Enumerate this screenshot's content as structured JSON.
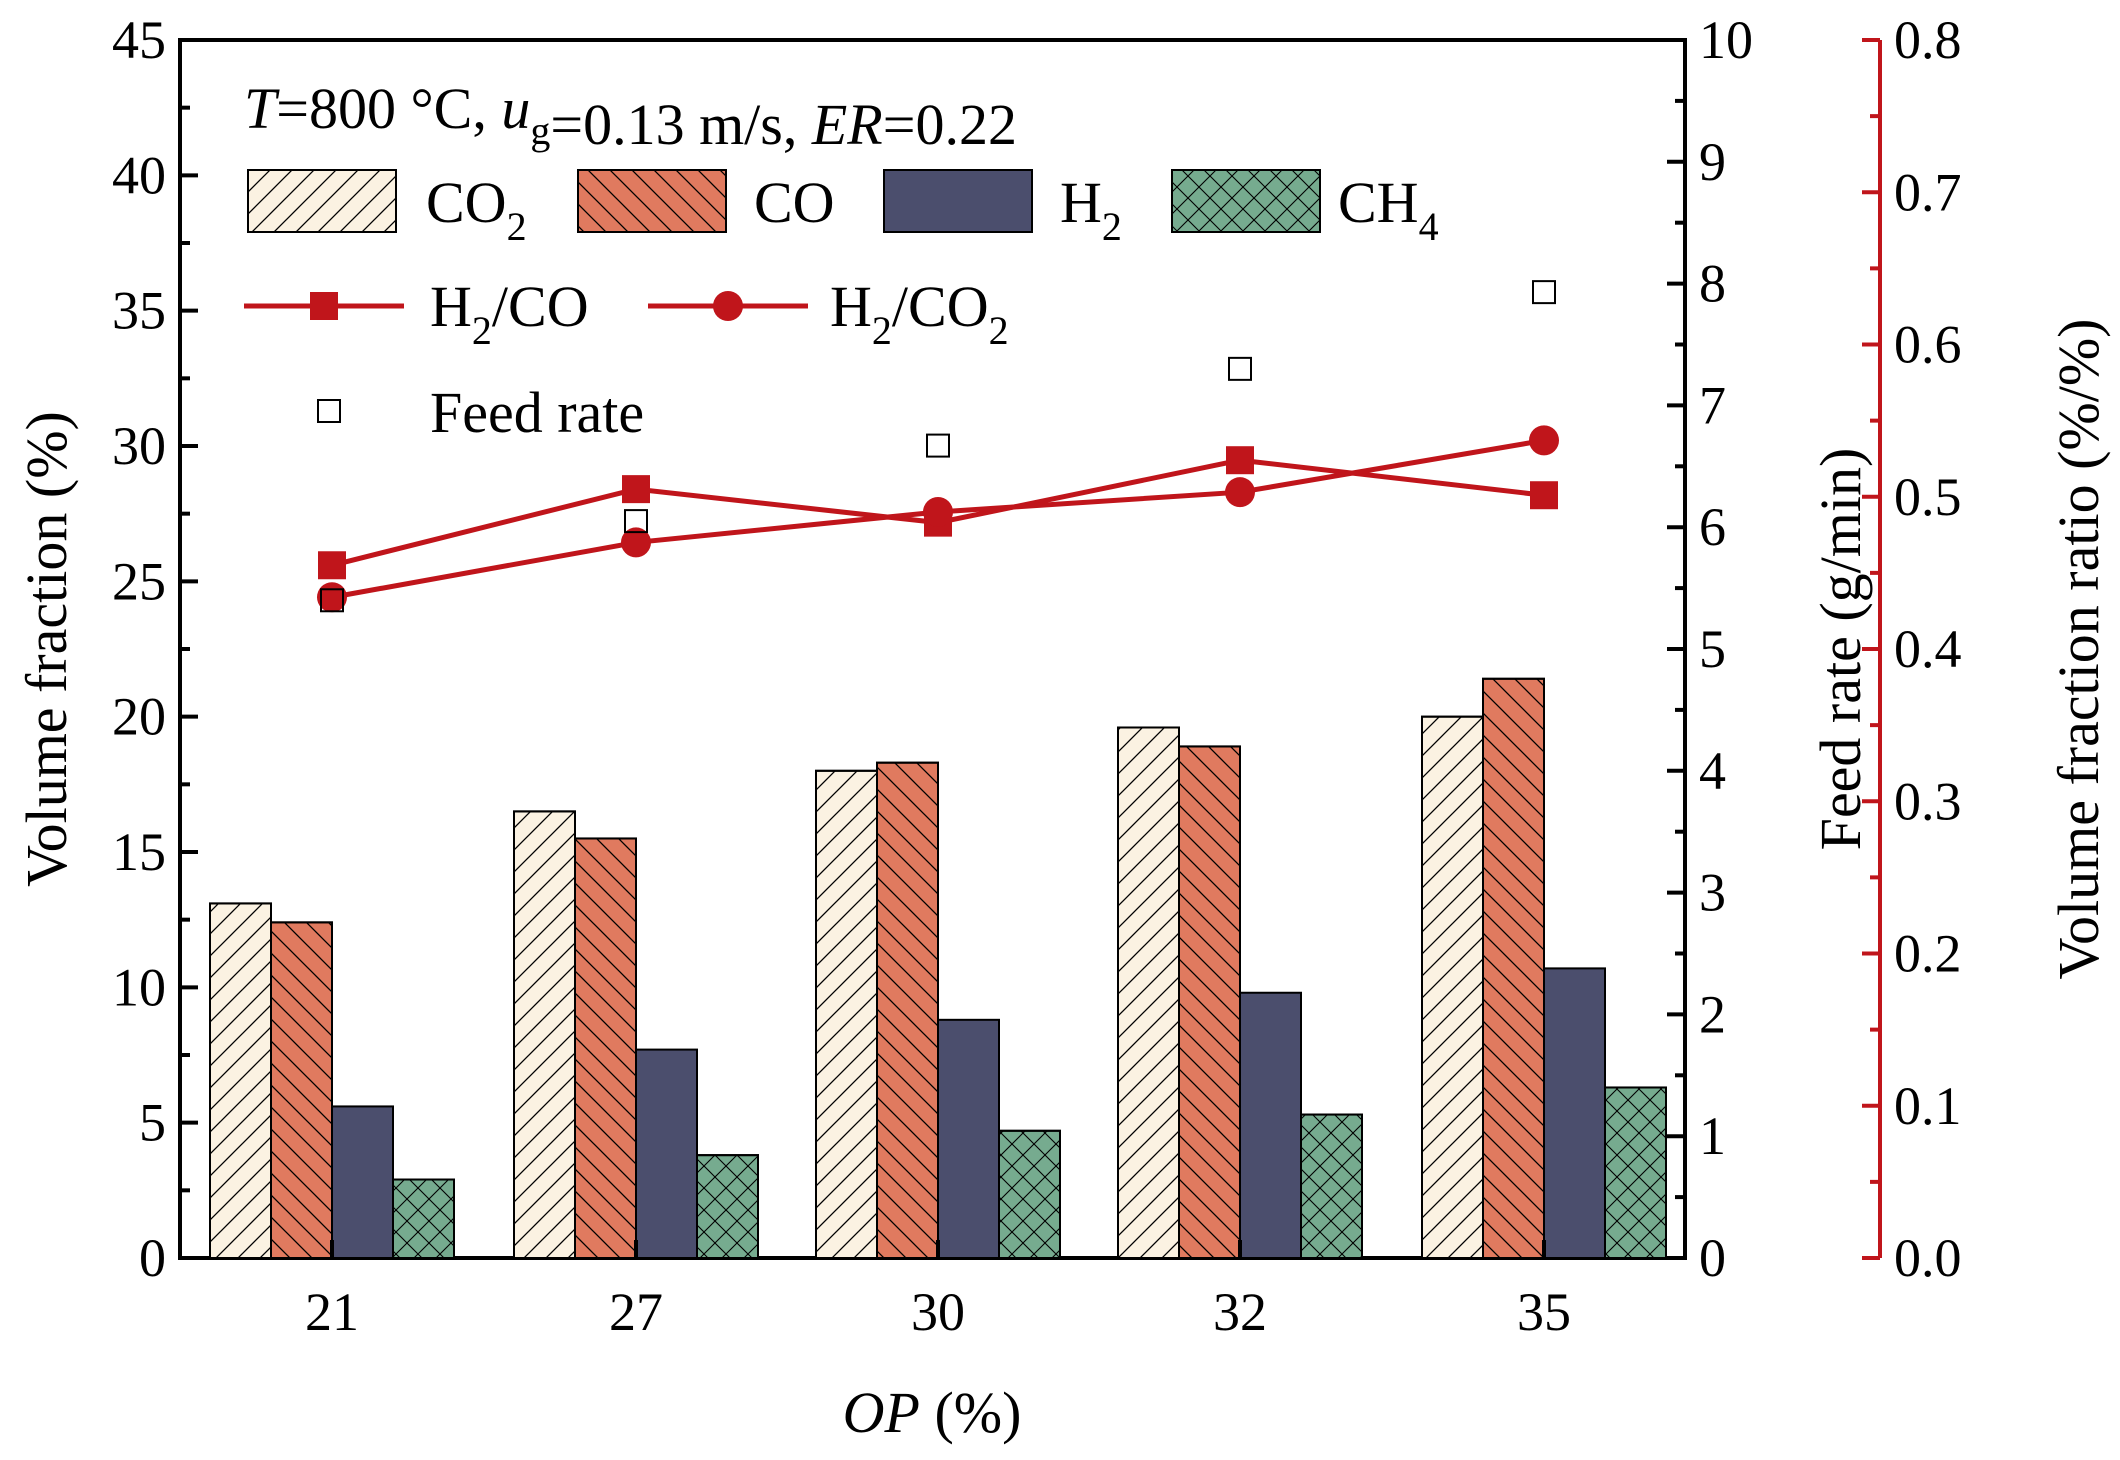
{
  "chart_data": {
    "type": "bar",
    "annotation": {
      "parts": [
        {
          "text": "T",
          "italic": true
        },
        {
          "text": "=800 °C, ",
          "italic": false
        },
        {
          "text": "u",
          "italic": true
        },
        {
          "text": "g",
          "italic": false,
          "sub": true
        },
        {
          "text": "=0.13 m/s, ",
          "italic": false
        },
        {
          "text": "ER",
          "italic": true
        },
        {
          "text": "=0.22",
          "italic": false
        }
      ]
    },
    "categories": [
      "21",
      "27",
      "30",
      "32",
      "35"
    ],
    "x_axis": {
      "label_italic": "OP",
      "label_rest": " (%)"
    },
    "y_left": {
      "label": "Volume fraction (%)",
      "ylim": [
        0,
        45
      ],
      "ticks": [
        "0",
        "5",
        "10",
        "15",
        "20",
        "25",
        "30",
        "35",
        "40",
        "45"
      ]
    },
    "y_right1": {
      "label": "Feed rate (g/min)",
      "ylim": [
        0,
        10
      ],
      "ticks": [
        "0",
        "1",
        "2",
        "3",
        "4",
        "5",
        "6",
        "7",
        "8",
        "9",
        "10"
      ]
    },
    "y_right2": {
      "label": "Volume fraction ratio (%/%)",
      "ylim": [
        0,
        0.8
      ],
      "ticks": [
        "0.0",
        "0.1",
        "0.2",
        "0.3",
        "0.4",
        "0.5",
        "0.6",
        "0.7",
        "0.8"
      ],
      "color": "#c0151b"
    },
    "bar_series": [
      {
        "name": "CO",
        "sub": "2",
        "values": [
          13.1,
          16.5,
          18.0,
          19.6,
          20.0
        ],
        "color": "#fbf2e2",
        "pattern": "hatch-fwd"
      },
      {
        "name": "CO",
        "sub": "",
        "values": [
          12.4,
          15.5,
          18.3,
          18.9,
          21.4
        ],
        "color": "#e07a5f",
        "pattern": "hatch-back"
      },
      {
        "name": "H",
        "sub": "2",
        "values": [
          5.6,
          7.7,
          8.8,
          9.8,
          10.7
        ],
        "color": "#4b4e6d",
        "pattern": "none"
      },
      {
        "name": "CH",
        "sub": "4",
        "values": [
          2.9,
          3.8,
          4.7,
          5.3,
          6.3
        ],
        "color": "#76ab8f",
        "pattern": "crosshatch"
      }
    ],
    "line_series": [
      {
        "name": "H",
        "sub1": "2",
        "mid": "/CO",
        "sub2": "",
        "marker": "square",
        "values": [
          0.455,
          0.505,
          0.483,
          0.524,
          0.501
        ]
      },
      {
        "name": "H",
        "sub1": "2",
        "mid": "/CO",
        "sub2": "2",
        "marker": "circle",
        "values": [
          0.434,
          0.47,
          0.49,
          0.503,
          0.537
        ]
      }
    ],
    "scatter_series": {
      "name": "Feed rate",
      "marker": "open-square",
      "values": [
        5.4,
        6.05,
        6.67,
        7.3,
        7.93
      ]
    },
    "colors": {
      "line": "#c0151b",
      "axis": "#000000"
    }
  }
}
